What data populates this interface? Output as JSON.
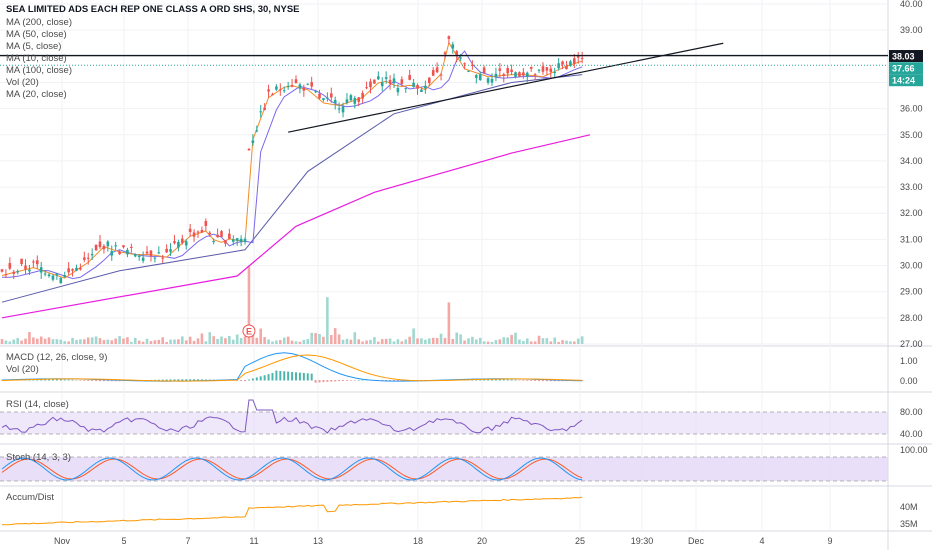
{
  "title": "SEA LIMITED ADS EACH REP ONE CLASS A ORD SHS, 30, NYSE",
  "legend_main": [
    "MA (200, close)",
    "MA (50, close)",
    "MA (5, close)",
    "MA (10, close)",
    "MA (100, close)",
    "Vol (20)",
    "MA (20, close)"
  ],
  "earnings_marker": "E",
  "panes": {
    "macd": {
      "label": "MACD (12, 26, close, 9)",
      "label2": "Vol (20)",
      "ticks": [
        "1.00",
        "0.00"
      ]
    },
    "rsi": {
      "label": "RSI (14, close)",
      "ticks": [
        "80.00",
        "40.00"
      ]
    },
    "stoch": {
      "label": "Stoch (14, 3, 3)",
      "ticks": [
        "100.00"
      ]
    },
    "accum": {
      "label": "Accum/Dist",
      "ticks": [
        "40M",
        "35M"
      ]
    }
  },
  "price_badges": {
    "top": "38.03",
    "current": "37.66",
    "countdown": "14:24"
  },
  "colors": {
    "up": "#26a69a",
    "down": "#ef5350",
    "ma200": "#e91ee0",
    "ma50": "#5b5bab",
    "ma5": "#f28c28",
    "ma10": "#7b68ee",
    "ma20": "#3a3a8a",
    "macd": "#2196f3",
    "signal": "#ff9800",
    "rsi": "#7e57c2",
    "stoch_k": "#2196f3",
    "stoch_d": "#ff5722",
    "accum": "#ff9800",
    "band": "#e1d4f5"
  },
  "chart_data": {
    "type": "candlestick",
    "title": "SEA LIMITED ADS EACH REP ONE CLASS A ORD SHS, 30, NYSE",
    "ylim": [
      27.0,
      40.0
    ],
    "yticks": [
      "40.00",
      "39.00",
      "38.00",
      "37.00",
      "36.00",
      "35.00",
      "34.00",
      "33.00",
      "32.00",
      "31.00",
      "30.00",
      "29.00",
      "28.00",
      "27.00"
    ],
    "xticks": [
      "Nov",
      "5",
      "7",
      "11",
      "13",
      "18",
      "20",
      "25",
      "19:30",
      "Dec",
      "4",
      "9"
    ],
    "price_path": [
      [
        0,
        29.7
      ],
      [
        8,
        30.0
      ],
      [
        16,
        29.6
      ],
      [
        22,
        30.2
      ],
      [
        26,
        30.8
      ],
      [
        30,
        30.6
      ],
      [
        34,
        30.5
      ],
      [
        38,
        30.5
      ],
      [
        42,
        30.4
      ],
      [
        48,
        31.2
      ],
      [
        52,
        31.4
      ],
      [
        55,
        30.9
      ],
      [
        58,
        31.1
      ],
      [
        62,
        31.0
      ],
      [
        63,
        34.5
      ],
      [
        68,
        36.5
      ],
      [
        73,
        37.0
      ],
      [
        78,
        36.8
      ],
      [
        82,
        36.3
      ],
      [
        86,
        36.2
      ],
      [
        92,
        36.5
      ],
      [
        97,
        37.2
      ],
      [
        101,
        36.9
      ],
      [
        105,
        37.0
      ],
      [
        108,
        36.8
      ],
      [
        112,
        37.4
      ],
      [
        114,
        38.6
      ],
      [
        118,
        37.6
      ],
      [
        124,
        37.3
      ],
      [
        132,
        37.4
      ],
      [
        138,
        37.3
      ],
      [
        144,
        37.7
      ],
      [
        148,
        37.9
      ]
    ],
    "ma200": [
      [
        0,
        28.0
      ],
      [
        60,
        29.6
      ],
      [
        75,
        31.5
      ],
      [
        95,
        32.8
      ],
      [
        130,
        34.3
      ],
      [
        150,
        35.0
      ]
    ],
    "ma50": [
      [
        0,
        28.6
      ],
      [
        30,
        29.8
      ],
      [
        62,
        30.6
      ],
      [
        78,
        33.6
      ],
      [
        100,
        35.8
      ],
      [
        130,
        37.0
      ],
      [
        148,
        37.3
      ]
    ],
    "trendline": [
      [
        73,
        35.1
      ],
      [
        184,
        38.5
      ]
    ],
    "horizontal_level": 38.03,
    "current_price": 37.66,
    "volume_spikes": [
      [
        63,
        3.0
      ],
      [
        83,
        1.8
      ],
      [
        114,
        1.6
      ]
    ],
    "rsi_levels": [
      80,
      40
    ],
    "stoch_levels": [
      80,
      20
    ],
    "grid": true
  }
}
